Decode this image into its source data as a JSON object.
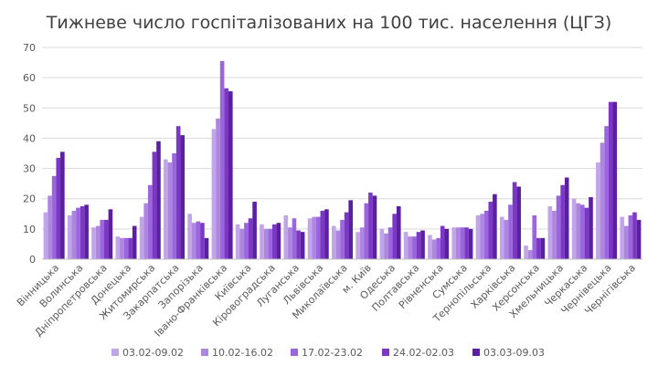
{
  "chart_data": {
    "type": "bar",
    "title": "Тижневе число госпіталізованих на 100 тис. населення (ЦГЗ)",
    "xlabel": "",
    "ylabel": "",
    "ylim": [
      0,
      70
    ],
    "yticks": [
      0,
      10,
      20,
      30,
      40,
      50,
      60,
      70
    ],
    "grid": true,
    "legend_position": "bottom",
    "categories": [
      "Вінницька",
      "Волинська",
      "Дніпропетровська",
      "Донецька",
      "Житомирська",
      "Закарпатська",
      "Запорізька",
      "Івано-Франківська",
      "Київська",
      "Кіровоградська",
      "Луганська",
      "Львівська",
      "Миколаївська",
      "м. Київ",
      "Одеська",
      "Полтавська",
      "Рівненська",
      "Сумська",
      "Тернопільська",
      "Харківська",
      "Херсонська",
      "Хмельницька",
      "Черкаська",
      "Чернівецька",
      "Чернігівська"
    ],
    "series": [
      {
        "name": "03.02-09.02",
        "color": "#c2a5e8",
        "values": [
          15.5,
          14.5,
          10.5,
          7.5,
          14,
          33,
          15,
          43,
          11.5,
          11.5,
          14.5,
          13.5,
          11,
          9,
          10,
          9,
          8,
          10.5,
          14.5,
          14,
          4.5,
          17.5,
          20,
          32,
          14
        ]
      },
      {
        "name": "10.02-16.02",
        "color": "#ad86e0",
        "values": [
          21,
          16,
          11,
          7,
          18.5,
          32,
          12,
          46.5,
          10,
          10,
          10.5,
          14,
          9.5,
          10.5,
          8.5,
          7.5,
          6.5,
          10.5,
          15,
          13,
          3,
          16,
          18.5,
          38.5,
          11
        ]
      },
      {
        "name": "17.02-23.02",
        "color": "#9b66dd",
        "values": [
          27.5,
          17,
          13,
          7,
          24.5,
          35,
          12.5,
          65.5,
          12,
          10,
          13.5,
          14,
          13,
          18.5,
          10.5,
          7.5,
          7,
          10.5,
          16,
          18,
          14.5,
          21,
          18,
          44,
          14.5
        ]
      },
      {
        "name": "24.02-02.03",
        "color": "#7b38c4",
        "values": [
          33.5,
          17.5,
          13,
          7,
          35.5,
          44,
          12,
          56.5,
          13.5,
          11.5,
          9.5,
          16,
          15.5,
          22,
          15,
          9,
          11,
          10.5,
          19,
          25.5,
          7,
          24.5,
          17,
          52,
          15.5
        ]
      },
      {
        "name": "03.03-09.03",
        "color": "#5c1fa1",
        "values": [
          35.5,
          18,
          16.5,
          11,
          39,
          41,
          7,
          55.5,
          19,
          12,
          9,
          16.5,
          19.5,
          21,
          17.5,
          9.5,
          10,
          10,
          21.5,
          24,
          7,
          27,
          20.5,
          52,
          13
        ]
      }
    ]
  }
}
